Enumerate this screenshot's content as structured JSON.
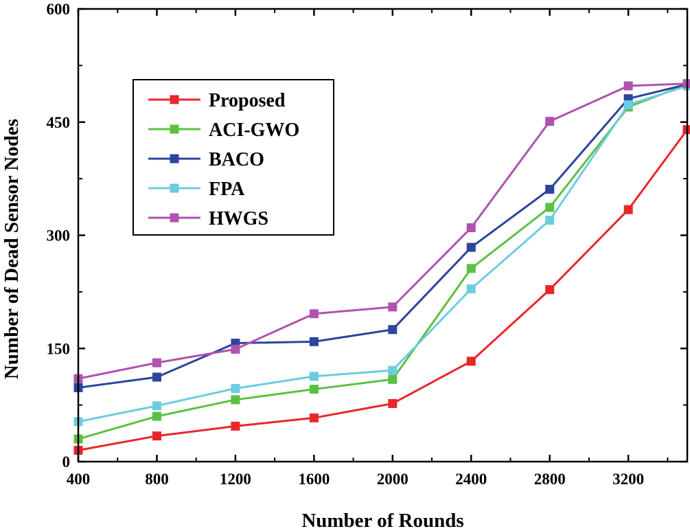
{
  "chart_data": {
    "type": "line",
    "title": "",
    "xlabel": "Number of Rounds",
    "ylabel": "Number of Dead Sensor Nodes",
    "x": [
      400,
      800,
      1200,
      1600,
      2000,
      2400,
      2800,
      3200,
      3500
    ],
    "xlim": [
      400,
      3500
    ],
    "ylim": [
      0,
      600
    ],
    "xticks": [
      400,
      800,
      1200,
      1600,
      2000,
      2400,
      2800,
      3200
    ],
    "yticks": [
      0,
      150,
      300,
      450,
      600
    ],
    "legend_position": "upper-left",
    "series": [
      {
        "name": "Proposed",
        "color": "#e8262a",
        "values": [
          15,
          34,
          47,
          58,
          77,
          133,
          228,
          334,
          440
        ]
      },
      {
        "name": "ACI-GWO",
        "color": "#5cc043",
        "values": [
          30,
          60,
          82,
          96,
          109,
          256,
          337,
          470,
          500
        ]
      },
      {
        "name": "BACO",
        "color": "#2c449c",
        "values": [
          98,
          112,
          157,
          159,
          175,
          284,
          361,
          481,
          500
        ]
      },
      {
        "name": "FPA",
        "color": "#6ccce0",
        "values": [
          53,
          74,
          97,
          113,
          121,
          229,
          320,
          473,
          498
        ]
      },
      {
        "name": "HWGS",
        "color": "#b052b0",
        "values": [
          110,
          131,
          149,
          196,
          205,
          310,
          451,
          498,
          501
        ]
      }
    ]
  }
}
